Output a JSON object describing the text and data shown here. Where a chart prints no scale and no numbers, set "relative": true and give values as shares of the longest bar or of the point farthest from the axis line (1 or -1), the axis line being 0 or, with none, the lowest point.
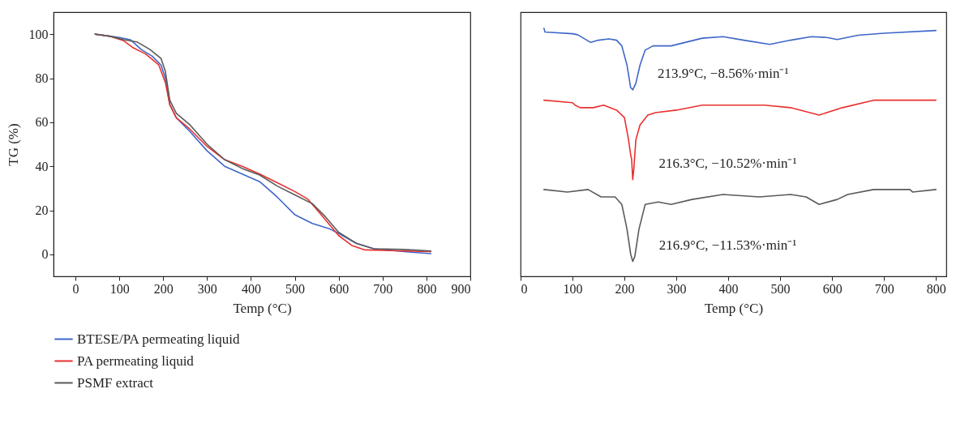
{
  "chart_data": [
    {
      "type": "line",
      "xlabel": "Temp (°C)",
      "ylabel": "TG (%)",
      "xlim": [
        -50,
        900
      ],
      "xticks": [
        0,
        100,
        200,
        300,
        400,
        500,
        600,
        700,
        800,
        900
      ],
      "ylim": [
        -10,
        110
      ],
      "yticks": [
        0,
        20,
        40,
        60,
        80,
        100
      ],
      "legend": "bottom",
      "series": [
        {
          "name": "BTESE/PA permeating liquid",
          "color": "#3f66c8",
          "x": [
            45,
            100,
            125,
            150,
            175,
            195,
            205,
            215,
            230,
            260,
            300,
            340,
            380,
            420,
            460,
            500,
            540,
            580,
            600,
            640,
            680,
            750,
            810
          ],
          "values": [
            100,
            98.5,
            97.5,
            93,
            90,
            86,
            80,
            68,
            62,
            56,
            47,
            40,
            36.5,
            33,
            26,
            18,
            14,
            11.5,
            9.5,
            5,
            2.5,
            1.2,
            0.3
          ]
        },
        {
          "name": "PA permeating liquid",
          "color": "#e8312f",
          "x": [
            45,
            80,
            110,
            130,
            160,
            190,
            205,
            215,
            230,
            260,
            300,
            340,
            380,
            420,
            460,
            500,
            530,
            560,
            600,
            630,
            660,
            700,
            750,
            810
          ],
          "values": [
            100,
            99,
            97,
            94,
            91,
            86,
            78,
            68,
            62,
            57,
            49,
            43,
            40,
            36.5,
            32.5,
            28.5,
            25,
            18,
            8.5,
            4,
            2,
            1.8,
            1.5,
            1.2
          ]
        },
        {
          "name": "PSMF extract",
          "color": "#5a5a5a",
          "x": [
            45,
            80,
            110,
            140,
            170,
            195,
            205,
            215,
            230,
            260,
            300,
            340,
            380,
            420,
            460,
            500,
            540,
            570,
            600,
            640,
            680,
            750,
            810
          ],
          "values": [
            100,
            99,
            97.5,
            96.5,
            93,
            89,
            83,
            70,
            64,
            59,
            50,
            43,
            39,
            36,
            31,
            27,
            23,
            17,
            10,
            5,
            2.5,
            2.2,
            1.5
          ]
        }
      ]
    },
    {
      "type": "line",
      "relative": true,
      "xlabel": "Temp (°C)",
      "xlim": [
        0,
        820
      ],
      "xticks": [
        0,
        100,
        200,
        300,
        400,
        500,
        600,
        700,
        800
      ],
      "tick_labels": "x",
      "series": [
        {
          "color": "#3f66c8",
          "x": [
            45,
            47,
            100,
            110,
            135,
            150,
            170,
            185,
            195,
            205,
            212,
            216,
            222,
            230,
            240,
            255,
            290,
            350,
            390,
            430,
            480,
            520,
            560,
            590,
            610,
            650,
            700,
            800
          ],
          "values": [
            1.0,
            0.985,
            0.978,
            0.974,
            0.943,
            0.952,
            0.957,
            0.952,
            0.929,
            0.851,
            0.761,
            0.752,
            0.778,
            0.851,
            0.912,
            0.929,
            0.929,
            0.96,
            0.966,
            0.952,
            0.935,
            0.952,
            0.966,
            0.963,
            0.955,
            0.972,
            0.98,
            0.991
          ]
        },
        {
          "color": "#e8312f",
          "x": [
            45,
            100,
            105,
            115,
            140,
            160,
            185,
            200,
            208,
            212,
            214,
            216,
            218,
            222,
            230,
            245,
            260,
            300,
            350,
            400,
            470,
            520,
            575,
            620,
            680,
            800
          ],
          "values": [
            0.71,
            0.7,
            0.69,
            0.68,
            0.68,
            0.69,
            0.67,
            0.64,
            0.55,
            0.49,
            0.47,
            0.39,
            0.43,
            0.55,
            0.61,
            0.65,
            0.66,
            0.67,
            0.69,
            0.69,
            0.69,
            0.68,
            0.65,
            0.68,
            0.71,
            0.71
          ]
        },
        {
          "color": "#5a5a5a",
          "x": [
            45,
            90,
            130,
            155,
            170,
            182,
            195,
            205,
            212,
            216,
            220,
            228,
            240,
            265,
            290,
            330,
            390,
            460,
            520,
            550,
            575,
            610,
            630,
            680,
            750,
            755,
            800
          ],
          "values": [
            0.35,
            0.34,
            0.35,
            0.32,
            0.32,
            0.32,
            0.29,
            0.19,
            0.09,
            0.06,
            0.08,
            0.19,
            0.29,
            0.3,
            0.29,
            0.31,
            0.33,
            0.32,
            0.33,
            0.32,
            0.29,
            0.31,
            0.33,
            0.35,
            0.35,
            0.34,
            0.35
          ]
        }
      ],
      "annotations": [
        {
          "text": "213.9°C, −8.56%·min⁻¹",
          "x": 213.9,
          "y": 0.752
        },
        {
          "text": "216.3°C, −10.52%·min⁻¹",
          "x": 216.3,
          "y": 0.39
        },
        {
          "text": "216.9°C, −11.53%·min⁻¹",
          "x": 216.9,
          "y": 0.06
        }
      ]
    }
  ]
}
